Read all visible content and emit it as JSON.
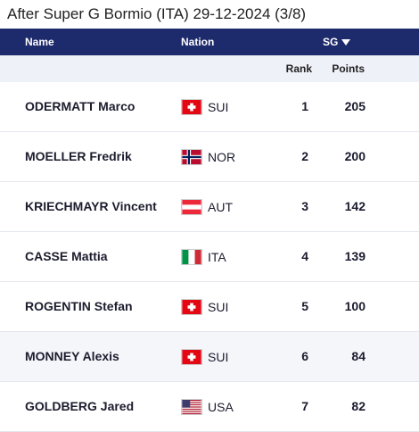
{
  "title": "After Super G Bormio (ITA) 29-12-2024 (3/8)",
  "header": {
    "name_label": "Name",
    "nation_label": "Nation",
    "sg_label": "SG"
  },
  "subheader": {
    "rank_label": "Rank",
    "points_label": "Points"
  },
  "rows": [
    {
      "name": "ODERMATT Marco",
      "nation": "SUI",
      "rank": "1",
      "points": "205"
    },
    {
      "name": "MOELLER Fredrik",
      "nation": "NOR",
      "rank": "2",
      "points": "200"
    },
    {
      "name": "KRIECHMAYR Vincent",
      "nation": "AUT",
      "rank": "3",
      "points": "142"
    },
    {
      "name": "CASSE Mattia",
      "nation": "ITA",
      "rank": "4",
      "points": "139"
    },
    {
      "name": "ROGENTIN Stefan",
      "nation": "SUI",
      "rank": "5",
      "points": "100"
    },
    {
      "name": "MONNEY Alexis",
      "nation": "SUI",
      "rank": "6",
      "points": "84"
    },
    {
      "name": "GOLDBERG Jared",
      "nation": "USA",
      "rank": "7",
      "points": "82"
    }
  ],
  "colors": {
    "header_bg": "#1d2a6b",
    "subheader_bg": "#eef1f8"
  }
}
